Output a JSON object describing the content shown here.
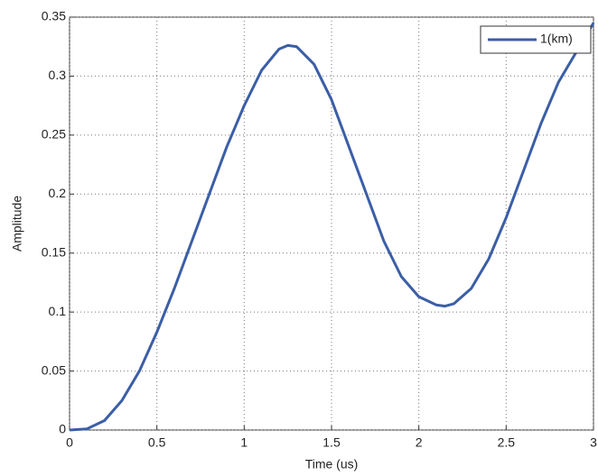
{
  "chart_data": {
    "type": "line",
    "xlabel": "Time (us)",
    "ylabel": "Amplitude",
    "x": [
      0,
      0.1,
      0.2,
      0.3,
      0.4,
      0.5,
      0.6,
      0.7,
      0.8,
      0.9,
      1.0,
      1.1,
      1.2,
      1.25,
      1.3,
      1.4,
      1.5,
      1.6,
      1.7,
      1.8,
      1.9,
      2.0,
      2.1,
      2.15,
      2.2,
      2.3,
      2.4,
      2.5,
      2.6,
      2.7,
      2.8,
      2.9,
      3.0
    ],
    "series": [
      {
        "name": "1(km)",
        "color": "#3b5ea6",
        "values": [
          0,
          0.001,
          0.008,
          0.025,
          0.05,
          0.083,
          0.12,
          0.16,
          0.2,
          0.24,
          0.275,
          0.305,
          0.323,
          0.326,
          0.325,
          0.31,
          0.28,
          0.24,
          0.2,
          0.16,
          0.13,
          0.113,
          0.106,
          0.105,
          0.107,
          0.12,
          0.145,
          0.18,
          0.22,
          0.26,
          0.295,
          0.32,
          0.345
        ]
      }
    ],
    "xlim": [
      0,
      3
    ],
    "xticks": [
      0,
      0.5,
      1,
      1.5,
      2,
      2.5,
      3
    ],
    "ylim": [
      0,
      0.35
    ],
    "yticks": [
      0,
      0.05,
      0.1,
      0.15,
      0.2,
      0.25,
      0.3,
      0.35
    ],
    "grid": true,
    "legend": "upper-right"
  }
}
